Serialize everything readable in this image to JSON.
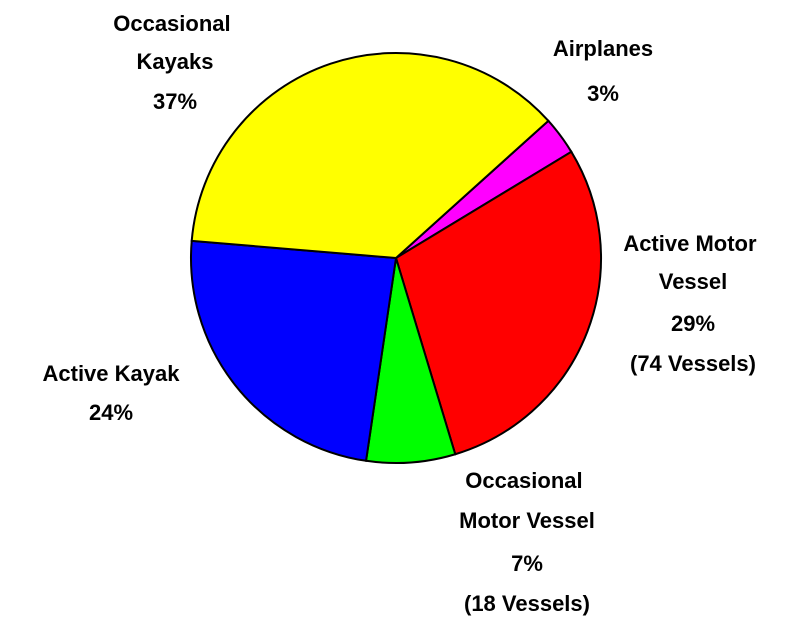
{
  "chart_data": {
    "type": "pie",
    "categories": [
      "Airplanes",
      "Active Motor Vessel",
      "Occasional Motor Vessel",
      "Active Kayak",
      "Occasional Kayaks"
    ],
    "values": [
      3,
      29,
      7,
      24,
      37
    ],
    "value_labels": [
      "3%",
      "29%",
      "7%",
      "24%",
      "37%"
    ],
    "count_labels": [
      null,
      "(74 Vessels)",
      "(18 Vessels)",
      null,
      null
    ],
    "colors": [
      "#ff00ff",
      "#ff0000",
      "#00ff00",
      "#0000ff",
      "#ffff00"
    ]
  }
}
